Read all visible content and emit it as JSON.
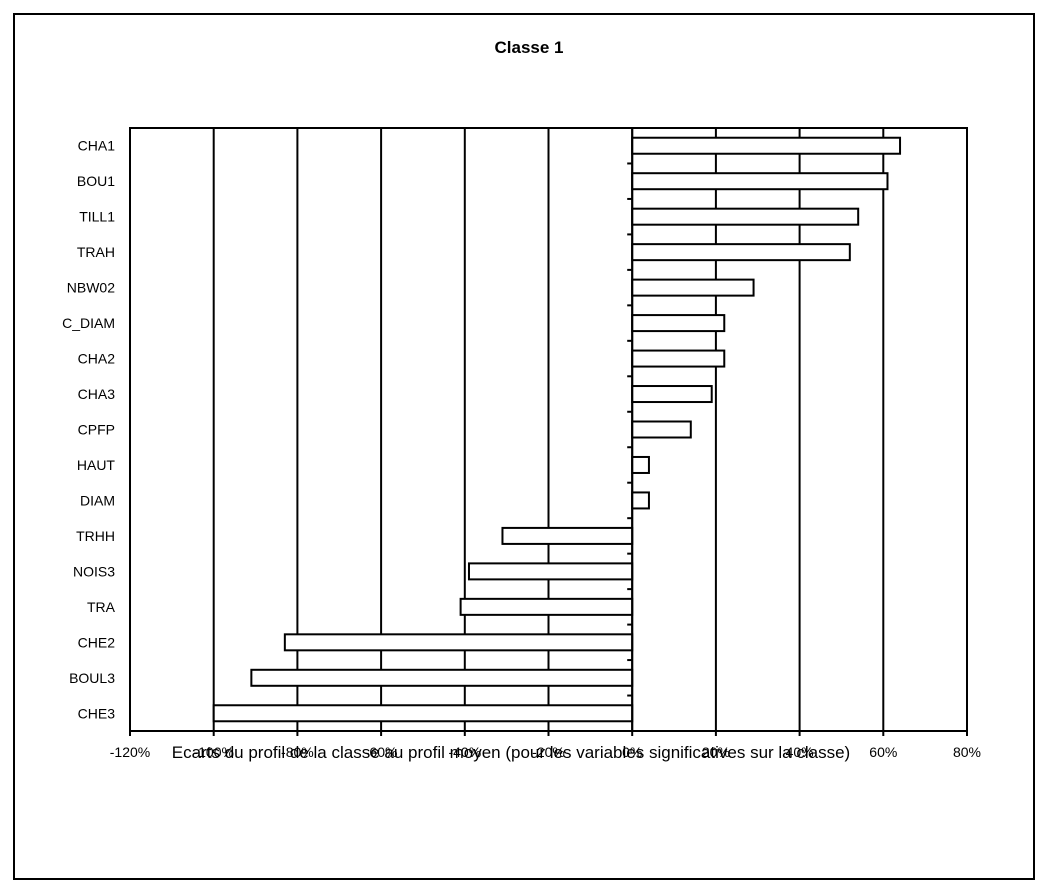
{
  "chart_data": {
    "type": "bar",
    "orientation": "horizontal",
    "title": "Classe 1",
    "caption": "Ecarts du profil de la classe au profil moyen (pour les variables significatives sur la classe)",
    "xlabel": "",
    "ylabel": "",
    "xlim": [
      -120,
      80
    ],
    "x_ticks": [
      -120,
      -100,
      -80,
      -60,
      -40,
      -20,
      0,
      20,
      40,
      60,
      80
    ],
    "tick_labels": [
      "-120%",
      "-100%",
      "-80%",
      "-60%",
      "-40%",
      "-20%",
      "0%",
      "20%",
      "40%",
      "60%",
      "80%"
    ],
    "grid": "vertical",
    "legend": "none",
    "unit": "%",
    "categories": [
      "CHA1",
      "BOU1",
      "TILL1",
      "TRAH",
      "NBW02",
      "C_DIAM",
      "CHA2",
      "CHA3",
      "CPFP",
      "HAUT",
      "DIAM",
      "TRHH",
      "NOIS3",
      "TRA",
      "CHE2",
      "BOUL3",
      "CHE3"
    ],
    "values": [
      64,
      61,
      54,
      52,
      29,
      22,
      22,
      19,
      14,
      4,
      4,
      -31,
      -39,
      -41,
      -83,
      -91,
      -100
    ],
    "bar_fill": "#ffffff",
    "bar_stroke": "#000000"
  }
}
